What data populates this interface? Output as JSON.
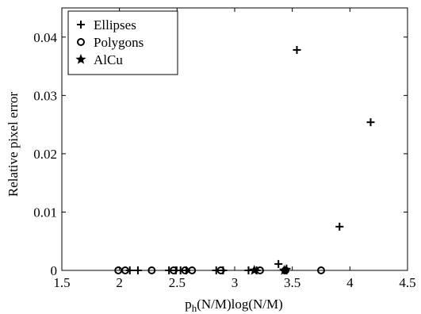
{
  "chart_data": {
    "type": "scatter",
    "xlabel": "p_h(N/M)log(N/M)",
    "xlabel_parts": {
      "main": "p",
      "sub": "h",
      "rest": "(N/M)log(N/M)"
    },
    "ylabel": "Relative pixel error",
    "xlim": [
      1.5,
      4.5
    ],
    "ylim": [
      0,
      0.045
    ],
    "xticks": [
      1.5,
      2,
      2.5,
      3,
      3.5,
      4,
      4.5
    ],
    "xtick_labels": [
      "1.5",
      "2",
      "2.5",
      "3",
      "3.5",
      "4",
      "4.5"
    ],
    "yticks": [
      0,
      0.01,
      0.02,
      0.03,
      0.04
    ],
    "ytick_labels": [
      "0",
      "0.01",
      "0.02",
      "0.03",
      "0.04"
    ],
    "grid": false,
    "legend_position": "top-left",
    "series": [
      {
        "name": "Ellipses",
        "marker": "plus",
        "points": [
          {
            "x": 2.09,
            "y": 0
          },
          {
            "x": 2.16,
            "y": 0
          },
          {
            "x": 2.43,
            "y": 0
          },
          {
            "x": 2.49,
            "y": 0
          },
          {
            "x": 2.53,
            "y": 0
          },
          {
            "x": 2.58,
            "y": 0
          },
          {
            "x": 2.84,
            "y": 0
          },
          {
            "x": 2.9,
            "y": 0
          },
          {
            "x": 3.12,
            "y": 0
          },
          {
            "x": 3.19,
            "y": 0
          },
          {
            "x": 3.38,
            "y": 0.0011
          },
          {
            "x": 3.43,
            "y": 0
          },
          {
            "x": 3.45,
            "y": 0.0003
          },
          {
            "x": 3.54,
            "y": 0.0378
          },
          {
            "x": 3.91,
            "y": 0.0075
          },
          {
            "x": 4.18,
            "y": 0.0254
          }
        ]
      },
      {
        "name": "Polygons",
        "marker": "circle",
        "points": [
          {
            "x": 1.99,
            "y": 0
          },
          {
            "x": 2.05,
            "y": 0
          },
          {
            "x": 2.28,
            "y": 0
          },
          {
            "x": 2.47,
            "y": 0
          },
          {
            "x": 2.57,
            "y": 0
          },
          {
            "x": 2.63,
            "y": 0
          },
          {
            "x": 2.88,
            "y": 0
          },
          {
            "x": 3.22,
            "y": 0
          },
          {
            "x": 3.44,
            "y": 0
          },
          {
            "x": 3.75,
            "y": 0
          }
        ]
      },
      {
        "name": "AlCu",
        "marker": "star",
        "points": [
          {
            "x": 3.17,
            "y": 0
          },
          {
            "x": 3.43,
            "y": 0
          }
        ]
      }
    ]
  }
}
